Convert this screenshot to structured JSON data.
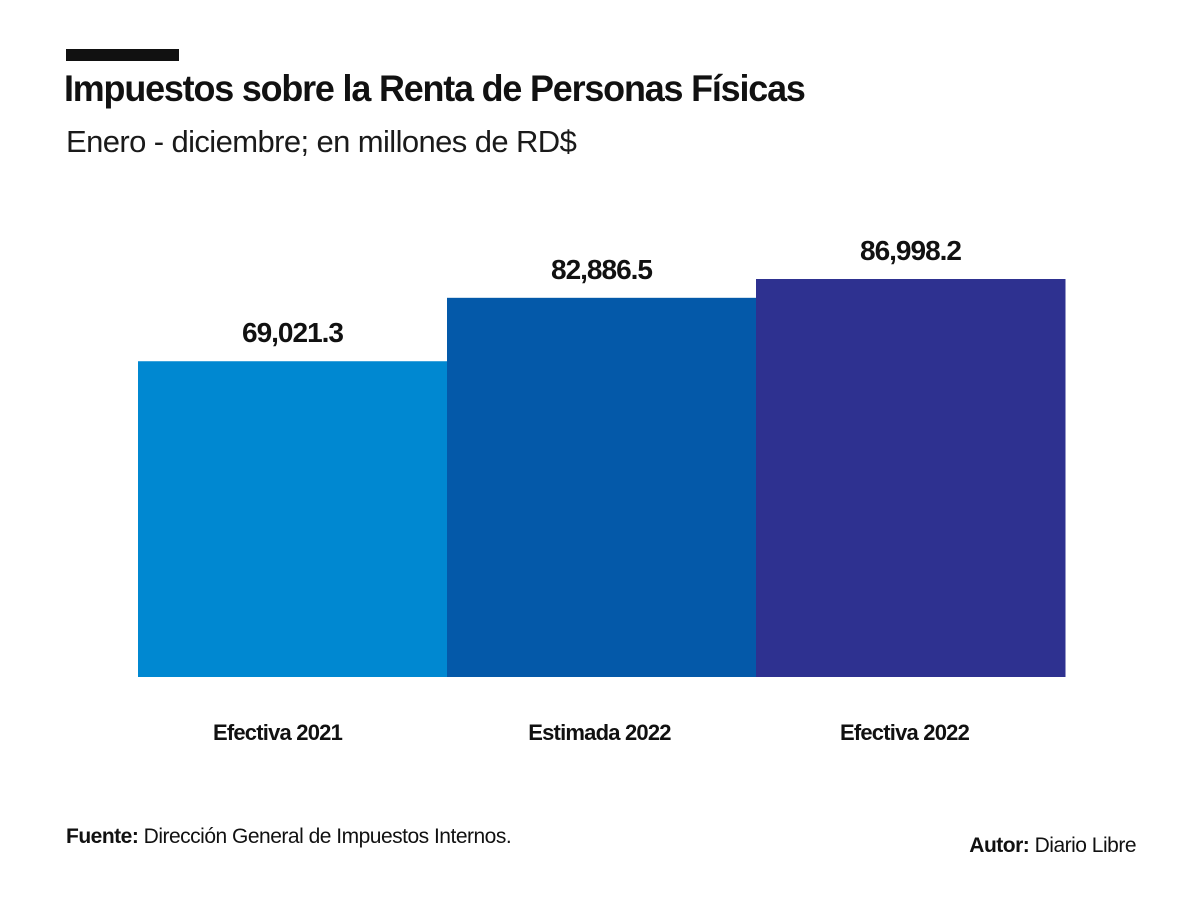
{
  "header": {
    "title": "Impuestos sobre la Renta de Personas Físicas",
    "subtitle": "Enero - diciembre; en millones de RD$"
  },
  "footer": {
    "source_label": "Fuente:",
    "source_text": " Dirección General de Impuestos Internos.",
    "author_label": "Autor:",
    "author_text": " Diario Libre"
  },
  "chart_data": {
    "type": "bar",
    "title": "Impuestos sobre la Renta de Personas Físicas",
    "subtitle": "Enero - diciembre; en millones de RD$",
    "xlabel": "",
    "ylabel": "",
    "categories": [
      "Efectiva 2021",
      "Estimada 2022",
      "Efectiva 2022"
    ],
    "values": [
      69021.3,
      82886.5,
      86998.2
    ],
    "value_labels": [
      "69,021.3",
      "82,886.5",
      "86,998.2"
    ],
    "colors": [
      "#0088d1",
      "#0459a9",
      "#2e3190"
    ],
    "ylim": [
      0,
      86998.2
    ],
    "grid": false,
    "legend": "none"
  }
}
